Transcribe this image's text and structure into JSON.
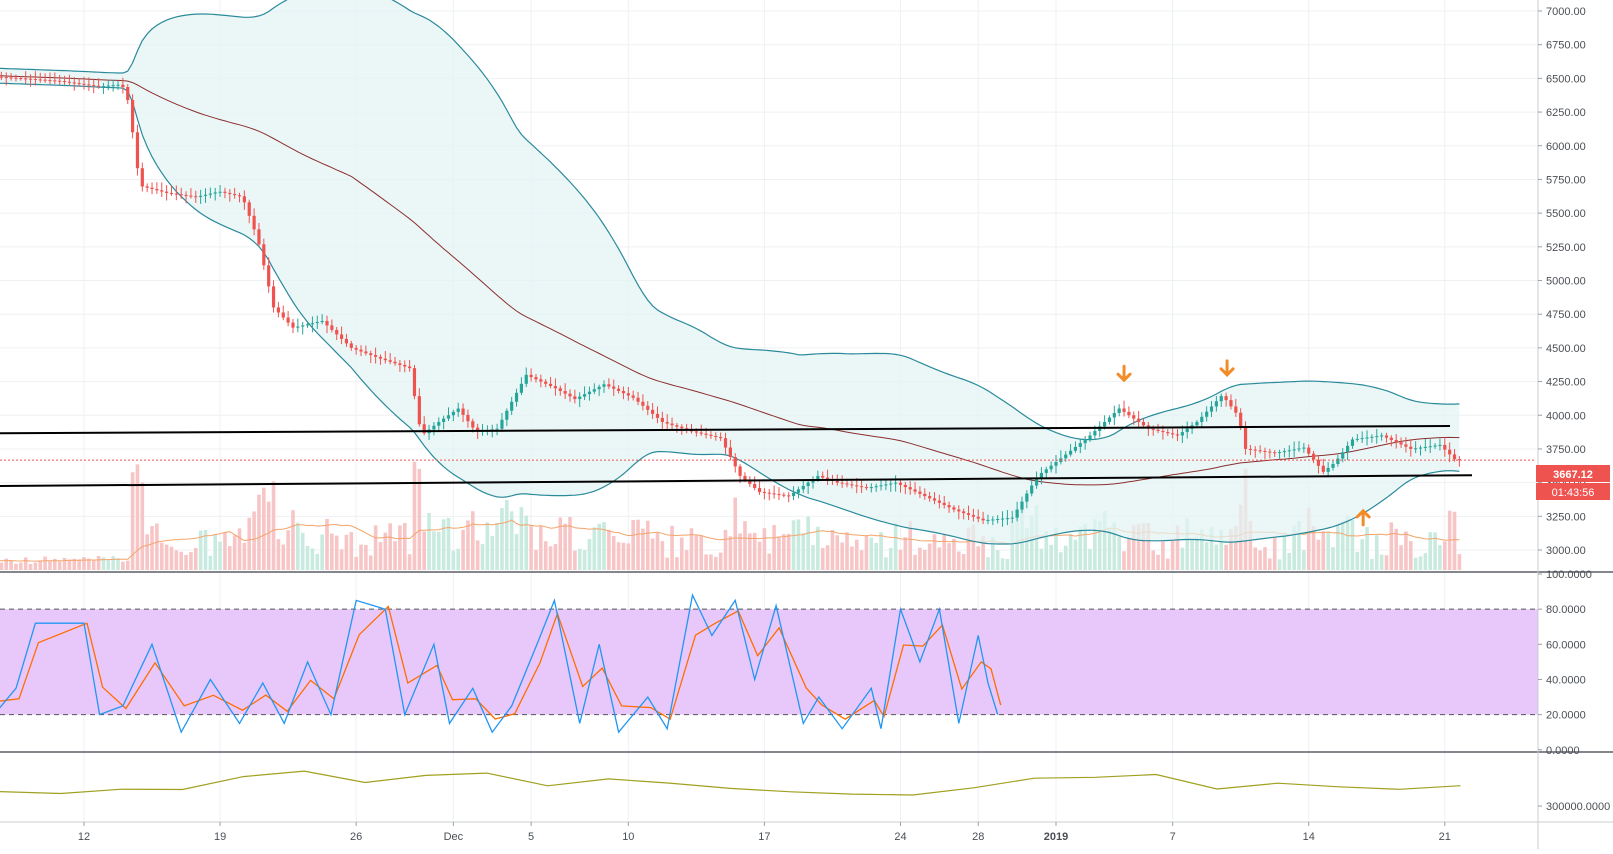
{
  "chart_data": [
    {
      "type": "candlestick",
      "panel": "price",
      "y_ticks": [
        "7000.00",
        "6750.00",
        "6500.00",
        "6250.00",
        "6000.00",
        "5750.00",
        "5500.00",
        "5250.00",
        "5000.00",
        "4750.00",
        "4500.00",
        "4250.00",
        "4000.00",
        "3750.00",
        "3500.00",
        "3250.00",
        "3000.00"
      ],
      "ylim": [
        2850,
        7050
      ],
      "last_price": "3667.12",
      "last_price_value": 3667.12,
      "countdown": "01:43:56",
      "price_points": [
        {
          "x": 0,
          "y": 6530
        },
        {
          "x": 5,
          "y": 6480
        },
        {
          "x": 7,
          "y": 6440
        },
        {
          "x": 8.2,
          "y": 6455
        },
        {
          "x": 8.6,
          "y": 6300
        },
        {
          "x": 8.9,
          "y": 5900
        },
        {
          "x": 9.2,
          "y": 5700
        },
        {
          "x": 10.5,
          "y": 5650
        },
        {
          "x": 12,
          "y": 5620
        },
        {
          "x": 13.2,
          "y": 5660
        },
        {
          "x": 14.4,
          "y": 5620
        },
        {
          "x": 15.2,
          "y": 5300
        },
        {
          "x": 16,
          "y": 4800
        },
        {
          "x": 17,
          "y": 4650
        },
        {
          "x": 18.5,
          "y": 4700
        },
        {
          "x": 20,
          "y": 4500
        },
        {
          "x": 21.5,
          "y": 4420
        },
        {
          "x": 23,
          "y": 4350
        },
        {
          "x": 23.6,
          "y": 3850
        },
        {
          "x": 24.5,
          "y": 3950
        },
        {
          "x": 25.5,
          "y": 4050
        },
        {
          "x": 26.4,
          "y": 3880
        },
        {
          "x": 27.5,
          "y": 3900
        },
        {
          "x": 29,
          "y": 4300
        },
        {
          "x": 30.5,
          "y": 4200
        },
        {
          "x": 31.5,
          "y": 4120
        },
        {
          "x": 33,
          "y": 4230
        },
        {
          "x": 34.5,
          "y": 4130
        },
        {
          "x": 36,
          "y": 3950
        },
        {
          "x": 37.5,
          "y": 3880
        },
        {
          "x": 39,
          "y": 3830
        },
        {
          "x": 40,
          "y": 3550
        },
        {
          "x": 41,
          "y": 3430
        },
        {
          "x": 42.5,
          "y": 3400
        },
        {
          "x": 44,
          "y": 3550
        },
        {
          "x": 45,
          "y": 3500
        },
        {
          "x": 46.5,
          "y": 3460
        },
        {
          "x": 48,
          "y": 3500
        },
        {
          "x": 49.5,
          "y": 3400
        },
        {
          "x": 51,
          "y": 3300
        },
        {
          "x": 52.5,
          "y": 3220
        },
        {
          "x": 54,
          "y": 3240
        },
        {
          "x": 55.3,
          "y": 3550
        },
        {
          "x": 56.5,
          "y": 3680
        },
        {
          "x": 58,
          "y": 3850
        },
        {
          "x": 59.5,
          "y": 4050
        },
        {
          "x": 61,
          "y": 3900
        },
        {
          "x": 62.5,
          "y": 3850
        },
        {
          "x": 63.5,
          "y": 3950
        },
        {
          "x": 64.8,
          "y": 4150
        },
        {
          "x": 65.6,
          "y": 4000
        },
        {
          "x": 66,
          "y": 3750
        },
        {
          "x": 67.5,
          "y": 3720
        },
        {
          "x": 69,
          "y": 3760
        },
        {
          "x": 70,
          "y": 3580
        },
        {
          "x": 70.6,
          "y": 3650
        },
        {
          "x": 71.5,
          "y": 3820
        },
        {
          "x": 73,
          "y": 3850
        },
        {
          "x": 74.5,
          "y": 3750
        },
        {
          "x": 76,
          "y": 3780
        },
        {
          "x": 76.8,
          "y": 3667
        }
      ],
      "x_ticks": [
        {
          "label": "12",
          "day": 6
        },
        {
          "label": "19",
          "day": 13
        },
        {
          "label": "26",
          "day": 20
        },
        {
          "label": "Dec",
          "day": 25
        },
        {
          "label": "5",
          "day": 29
        },
        {
          "label": "10",
          "day": 34
        },
        {
          "label": "17",
          "day": 41
        },
        {
          "label": "24",
          "day": 48
        },
        {
          "label": "28",
          "day": 52
        },
        {
          "label": "2019",
          "day": 56
        },
        {
          "label": "7",
          "day": 62
        },
        {
          "label": "14",
          "day": 69
        },
        {
          "label": "21",
          "day": 76
        }
      ],
      "colors": {
        "up": "#26a69a",
        "down": "#ef5350",
        "band": "#2a8a9a",
        "band_fill": "#e3f4f4",
        "basis": "#8b2e2e",
        "trend_line": "#000000",
        "annotation_arrow": "#f28c28",
        "volume_up": "#c8eadf",
        "volume_down": "#f7c5c5",
        "volume_ma": "#f4a46a",
        "price_line": "#ef5350"
      }
    },
    {
      "type": "line",
      "panel": "stochastic-rsi",
      "y_ticks": [
        "100.0000",
        "80.0000",
        "60.0000",
        "40.0000",
        "20.0000",
        "0.0000"
      ],
      "ylim": [
        0,
        100
      ],
      "upper_band": 80,
      "lower_band": 20,
      "k_points": [
        {
          "x": 0,
          "y": 55
        },
        {
          "x": 1,
          "y": 15
        },
        {
          "x": 2.5,
          "y": 35
        },
        {
          "x": 3.5,
          "y": 72
        },
        {
          "x": 6,
          "y": 72
        },
        {
          "x": 6.8,
          "y": 20
        },
        {
          "x": 8,
          "y": 25
        },
        {
          "x": 9.5,
          "y": 60
        },
        {
          "x": 11,
          "y": 10
        },
        {
          "x": 12.5,
          "y": 40
        },
        {
          "x": 14,
          "y": 15
        },
        {
          "x": 15.2,
          "y": 38
        },
        {
          "x": 16.3,
          "y": 15
        },
        {
          "x": 17.5,
          "y": 50
        },
        {
          "x": 18.7,
          "y": 20
        },
        {
          "x": 20,
          "y": 85
        },
        {
          "x": 21.5,
          "y": 80
        },
        {
          "x": 22.5,
          "y": 20
        },
        {
          "x": 24,
          "y": 60
        },
        {
          "x": 24.8,
          "y": 15
        },
        {
          "x": 26,
          "y": 35
        },
        {
          "x": 27,
          "y": 10
        },
        {
          "x": 28,
          "y": 25
        },
        {
          "x": 29.3,
          "y": 60
        },
        {
          "x": 30.2,
          "y": 85
        },
        {
          "x": 31.5,
          "y": 15
        },
        {
          "x": 32.5,
          "y": 60
        },
        {
          "x": 33.5,
          "y": 10
        },
        {
          "x": 35,
          "y": 30
        },
        {
          "x": 36,
          "y": 12
        },
        {
          "x": 37.3,
          "y": 88
        },
        {
          "x": 38.3,
          "y": 65
        },
        {
          "x": 39.5,
          "y": 85
        },
        {
          "x": 40.5,
          "y": 40
        },
        {
          "x": 41.6,
          "y": 82
        },
        {
          "x": 43,
          "y": 15
        },
        {
          "x": 43.8,
          "y": 30
        },
        {
          "x": 45,
          "y": 12
        },
        {
          "x": 46.5,
          "y": 35
        },
        {
          "x": 47,
          "y": 12
        },
        {
          "x": 48,
          "y": 80
        },
        {
          "x": 49,
          "y": 50
        },
        {
          "x": 50,
          "y": 80
        },
        {
          "x": 51,
          "y": 15
        },
        {
          "x": 52,
          "y": 65
        },
        {
          "x": 52.5,
          "y": 38
        },
        {
          "x": 53,
          "y": 20
        }
      ],
      "colors": {
        "k": "#2196f3",
        "d": "#ff6d00",
        "band_fill": "#e8c8fb",
        "band_line": "#555555"
      }
    },
    {
      "type": "line",
      "panel": "obv",
      "y_ticks": [
        "300000.0000"
      ],
      "values": [
        0.2,
        0.18,
        0.22,
        0.35,
        0.9,
        1.05,
        0.7,
        0.9,
        1.0,
        0.55,
        0.7,
        0.6,
        0.4,
        0.1,
        0.15,
        0.05,
        0.3,
        0.9,
        0.8,
        0.95,
        0.4,
        0.5,
        0.45,
        0.35,
        0.38
      ],
      "colors": {
        "line": "#a0a020"
      }
    }
  ]
}
